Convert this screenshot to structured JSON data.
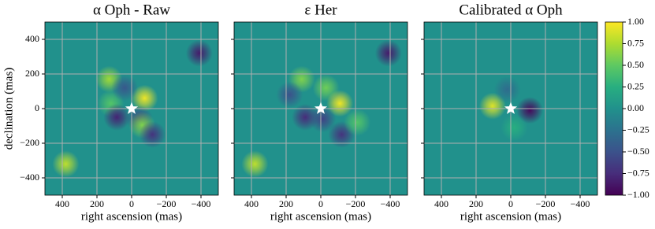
{
  "chart_data": [
    {
      "type": "heatmap",
      "title": "α Oph - Raw",
      "xlabel": "right ascension (mas)",
      "ylabel": "declination (mas)",
      "xlim": [
        500,
        -500
      ],
      "ylim": [
        -500,
        500
      ],
      "xticks": [
        400,
        200,
        0,
        {
          "value": -200,
          "label": "−200"
        },
        {
          "value": -400,
          "label": "−400"
        }
      ],
      "yticks": [
        {
          "value": -400,
          "label": "−400"
        },
        {
          "value": -200,
          "label": "−200"
        },
        0,
        200,
        400
      ],
      "show_ytick_labels": true,
      "grid": true,
      "blobs": [
        {
          "x": 380,
          "y": -320,
          "value": 0.8
        },
        {
          "x": -390,
          "y": 320,
          "value": -0.85
        },
        {
          "x": 130,
          "y": 170,
          "value": 0.7
        },
        {
          "x": -75,
          "y": 60,
          "value": 0.95
        },
        {
          "x": 120,
          "y": 30,
          "value": 0.45
        },
        {
          "x": 85,
          "y": -50,
          "value": -0.8
        },
        {
          "x": -45,
          "y": -60,
          "value": -0.6
        },
        {
          "x": -60,
          "y": -95,
          "value": 0.6
        },
        {
          "x": -120,
          "y": -150,
          "value": -0.7
        },
        {
          "x": 40,
          "y": 120,
          "value": -0.45
        }
      ],
      "marker": {
        "x": 0,
        "y": 0
      }
    },
    {
      "type": "heatmap",
      "title": "ε Her",
      "xlabel": "right ascension (mas)",
      "xlim": [
        500,
        -500
      ],
      "ylim": [
        -500,
        500
      ],
      "xticks": [
        400,
        200,
        0,
        {
          "value": -200,
          "label": "−200"
        },
        {
          "value": -400,
          "label": "−400"
        }
      ],
      "yticks": [
        -400,
        -200,
        0,
        200,
        400
      ],
      "show_ytick_labels": false,
      "grid": true,
      "blobs": [
        {
          "x": 380,
          "y": -320,
          "value": 0.8
        },
        {
          "x": -390,
          "y": 320,
          "value": -0.85
        },
        {
          "x": 110,
          "y": 170,
          "value": 0.6
        },
        {
          "x": -30,
          "y": 120,
          "value": 0.55
        },
        {
          "x": -110,
          "y": 30,
          "value": 0.95
        },
        {
          "x": 90,
          "y": -50,
          "value": -0.75
        },
        {
          "x": -10,
          "y": -60,
          "value": -0.6
        },
        {
          "x": -120,
          "y": -150,
          "value": -0.7
        },
        {
          "x": -210,
          "y": -80,
          "value": 0.45
        },
        {
          "x": 180,
          "y": 80,
          "value": -0.5
        }
      ],
      "marker": {
        "x": 0,
        "y": 0
      }
    },
    {
      "type": "heatmap",
      "title": "Calibrated α Oph",
      "xlabel": "right ascension (mas)",
      "xlim": [
        500,
        -500
      ],
      "ylim": [
        -500,
        500
      ],
      "xticks": [
        400,
        200,
        0,
        {
          "value": -200,
          "label": "−200"
        },
        {
          "value": -400,
          "label": "−400"
        }
      ],
      "yticks": [
        -400,
        -200,
        0,
        200,
        400
      ],
      "show_ytick_labels": false,
      "grid": true,
      "blobs": [
        {
          "x": 105,
          "y": 15,
          "value": 0.9
        },
        {
          "x": -110,
          "y": -10,
          "value": -0.95
        },
        {
          "x": 20,
          "y": 110,
          "value": -0.3
        },
        {
          "x": -20,
          "y": -110,
          "value": 0.25
        }
      ],
      "marker": {
        "x": 0,
        "y": 0
      }
    },
    {
      "type": "colorbar",
      "clim": [
        -1,
        1
      ],
      "ticks": [
        {
          "value": 1,
          "label": "1.00"
        },
        {
          "value": 0.75,
          "label": "0.75"
        },
        {
          "value": 0.5,
          "label": "0.50"
        },
        {
          "value": 0.25,
          "label": "0.25"
        },
        {
          "value": 0,
          "label": "0.00"
        },
        {
          "value": -0.25,
          "label": "−0.25"
        },
        {
          "value": -0.5,
          "label": "−0.50"
        },
        {
          "value": -0.75,
          "label": "−0.75"
        },
        {
          "value": -1,
          "label": "−1.00"
        }
      ]
    }
  ]
}
